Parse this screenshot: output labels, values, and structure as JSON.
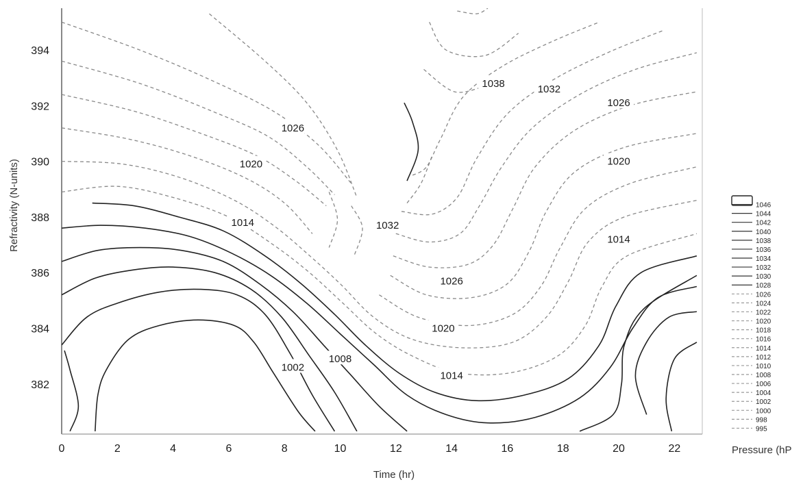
{
  "chart_data": {
    "type": "contour",
    "title": "",
    "xlabel": "Time (hr)",
    "ylabel": "Refractivity (N-units)",
    "xlim": [
      0,
      23
    ],
    "ylim": [
      380.2,
      395.5
    ],
    "x_ticks": [
      "0",
      "2",
      "4",
      "6",
      "8",
      "10",
      "12",
      "14",
      "16",
      "18",
      "20",
      "22"
    ],
    "y_ticks": [
      "382",
      "384",
      "386",
      "388",
      "390",
      "392",
      "394"
    ],
    "colorbar_title": "Pressure (hP",
    "colorbar_levels": [
      "1046",
      "1044",
      "1042",
      "1040",
      "1038",
      "1036",
      "1034",
      "1032",
      "1030",
      "1028",
      "1026",
      "1024",
      "1022",
      "1020",
      "1018",
      "1016",
      "1014",
      "1012",
      "1010",
      "1008",
      "1006",
      "1004",
      "1002",
      "1000",
      "998",
      "995"
    ],
    "contour_labels": [
      {
        "text": "1026",
        "x": 8.3,
        "y": 391.2
      },
      {
        "text": "1020",
        "x": 6.8,
        "y": 389.9
      },
      {
        "text": "1014",
        "x": 6.5,
        "y": 387.8
      },
      {
        "text": "1002",
        "x": 8.3,
        "y": 382.6
      },
      {
        "text": "1008",
        "x": 10.0,
        "y": 382.9
      },
      {
        "text": "1032",
        "x": 11.7,
        "y": 387.7
      },
      {
        "text": "1026",
        "x": 14.0,
        "y": 385.7
      },
      {
        "text": "1020",
        "x": 13.7,
        "y": 384.0
      },
      {
        "text": "1014",
        "x": 14.0,
        "y": 382.3
      },
      {
        "text": "1038",
        "x": 15.5,
        "y": 392.8
      },
      {
        "text": "1032",
        "x": 17.5,
        "y": 392.6
      },
      {
        "text": "1026",
        "x": 20.0,
        "y": 392.1
      },
      {
        "text": "1020",
        "x": 20.0,
        "y": 390.0
      },
      {
        "text": "1014",
        "x": 20.0,
        "y": 387.2
      }
    ],
    "contours": [
      {
        "level": 1000,
        "style": "solid",
        "points": [
          [
            0.3,
            380.3
          ],
          [
            0.6,
            381.2
          ],
          [
            0.3,
            382.5
          ],
          [
            0.1,
            383.2
          ]
        ]
      },
      {
        "level": 1002,
        "style": "solid",
        "points": [
          [
            1.2,
            380.3
          ],
          [
            1.3,
            381.6
          ],
          [
            1.6,
            382.5
          ],
          [
            2.4,
            383.6
          ],
          [
            3.5,
            384.1
          ],
          [
            4.9,
            384.3
          ],
          [
            6.2,
            384.1
          ],
          [
            6.9,
            383.5
          ],
          [
            7.6,
            382.4
          ],
          [
            8.5,
            381.0
          ],
          [
            9.1,
            380.3
          ]
        ]
      },
      {
        "level": 1004,
        "style": "solid",
        "points": [
          [
            0.0,
            383.4
          ],
          [
            0.9,
            384.4
          ],
          [
            2.0,
            384.9
          ],
          [
            3.5,
            385.3
          ],
          [
            5.0,
            385.4
          ],
          [
            6.3,
            385.2
          ],
          [
            7.3,
            384.5
          ],
          [
            8.2,
            383.1
          ],
          [
            9.0,
            381.6
          ],
          [
            9.8,
            380.3
          ]
        ]
      },
      {
        "level": 1006,
        "style": "solid",
        "points": [
          [
            0.0,
            385.2
          ],
          [
            1.2,
            385.8
          ],
          [
            2.6,
            386.1
          ],
          [
            4.0,
            386.2
          ],
          [
            5.5,
            386.0
          ],
          [
            6.8,
            385.4
          ],
          [
            7.9,
            384.4
          ],
          [
            8.9,
            383.0
          ],
          [
            9.8,
            381.7
          ],
          [
            10.6,
            380.3
          ]
        ]
      },
      {
        "level": 1008,
        "style": "solid",
        "points": [
          [
            0.0,
            386.4
          ],
          [
            1.3,
            386.8
          ],
          [
            2.8,
            386.9
          ],
          [
            4.3,
            386.8
          ],
          [
            5.8,
            386.4
          ],
          [
            7.1,
            385.6
          ],
          [
            8.3,
            384.6
          ],
          [
            9.4,
            383.4
          ],
          [
            10.4,
            382.3
          ],
          [
            11.4,
            381.2
          ],
          [
            12.4,
            380.3
          ]
        ]
      },
      {
        "level": 1010,
        "style": "solid",
        "points": [
          [
            0.0,
            387.6
          ],
          [
            1.4,
            387.7
          ],
          [
            3.0,
            387.6
          ],
          [
            4.6,
            387.3
          ],
          [
            6.1,
            386.7
          ],
          [
            7.5,
            385.9
          ],
          [
            8.8,
            384.9
          ],
          [
            10.0,
            383.8
          ],
          [
            11.2,
            382.7
          ],
          [
            12.4,
            381.6
          ],
          [
            13.8,
            380.9
          ],
          [
            15.3,
            380.6
          ],
          [
            17.0,
            380.8
          ],
          [
            18.6,
            381.5
          ],
          [
            19.7,
            382.6
          ],
          [
            20.5,
            384.0
          ],
          [
            21.4,
            385.1
          ],
          [
            22.8,
            385.5
          ]
        ]
      },
      {
        "level": 1012,
        "style": "solid",
        "points": [
          [
            1.1,
            388.5
          ],
          [
            2.6,
            388.4
          ],
          [
            4.2,
            388.0
          ],
          [
            5.8,
            387.5
          ],
          [
            7.3,
            386.6
          ],
          [
            8.6,
            385.6
          ],
          [
            9.8,
            384.5
          ],
          [
            10.9,
            383.4
          ],
          [
            12.1,
            382.4
          ],
          [
            13.4,
            381.7
          ],
          [
            14.9,
            381.4
          ],
          [
            16.6,
            381.6
          ],
          [
            18.2,
            382.2
          ],
          [
            19.3,
            383.4
          ],
          [
            19.9,
            384.8
          ],
          [
            20.8,
            386.0
          ],
          [
            22.8,
            386.6
          ]
        ]
      },
      {
        "level": 1014,
        "style": "light",
        "points": [
          [
            0.0,
            388.9
          ],
          [
            2.0,
            389.1
          ],
          [
            4.0,
            388.7
          ],
          [
            6.0,
            388.0
          ],
          [
            7.6,
            387.0
          ],
          [
            8.9,
            386.0
          ],
          [
            10.1,
            384.9
          ],
          [
            11.3,
            383.8
          ],
          [
            12.6,
            383.0
          ],
          [
            14.2,
            382.4
          ],
          [
            16.1,
            382.4
          ],
          [
            17.8,
            383.0
          ],
          [
            18.8,
            384.1
          ],
          [
            19.4,
            385.5
          ],
          [
            20.3,
            386.6
          ],
          [
            22.8,
            387.4
          ]
        ]
      },
      {
        "level": 1016,
        "style": "light",
        "points": [
          [
            0.0,
            390.0
          ],
          [
            2.2,
            389.9
          ],
          [
            4.3,
            389.4
          ],
          [
            6.2,
            388.6
          ],
          [
            7.6,
            387.7
          ],
          [
            8.8,
            386.7
          ],
          [
            10.0,
            385.6
          ],
          [
            11.2,
            384.4
          ],
          [
            12.6,
            383.6
          ],
          [
            14.4,
            383.3
          ],
          [
            16.2,
            383.5
          ],
          [
            17.4,
            384.4
          ],
          [
            18.2,
            385.7
          ],
          [
            18.9,
            387.1
          ],
          [
            20.2,
            388.0
          ],
          [
            22.8,
            388.6
          ]
        ]
      },
      {
        "level": 1018,
        "style": "light",
        "points": [
          [
            0.0,
            391.2
          ],
          [
            2.4,
            390.8
          ],
          [
            4.6,
            390.2
          ],
          [
            6.6,
            389.4
          ],
          [
            8.0,
            388.5
          ],
          [
            9.0,
            387.4
          ]
        ]
      },
      {
        "level": 1018,
        "style": "light",
        "points": [
          [
            11.4,
            385.2
          ],
          [
            12.8,
            384.4
          ],
          [
            14.6,
            384.1
          ],
          [
            16.2,
            384.5
          ],
          [
            17.2,
            385.5
          ],
          [
            17.9,
            386.9
          ],
          [
            18.8,
            388.3
          ],
          [
            20.4,
            389.2
          ],
          [
            22.8,
            389.8
          ]
        ]
      },
      {
        "level": 1020,
        "style": "light",
        "points": [
          [
            0.0,
            392.4
          ],
          [
            2.6,
            391.8
          ],
          [
            5.0,
            391.0
          ],
          [
            7.0,
            390.2
          ],
          [
            8.4,
            389.3
          ],
          [
            9.5,
            388.4
          ]
        ]
      },
      {
        "level": 1020,
        "style": "light",
        "points": [
          [
            11.8,
            385.9
          ],
          [
            13.1,
            385.2
          ],
          [
            14.7,
            385.1
          ],
          [
            16.0,
            385.6
          ],
          [
            16.8,
            386.8
          ],
          [
            17.4,
            388.2
          ],
          [
            18.4,
            389.6
          ],
          [
            20.2,
            390.5
          ],
          [
            22.8,
            391.0
          ]
        ]
      },
      {
        "level": 1022,
        "style": "light",
        "points": [
          [
            0.0,
            393.6
          ],
          [
            2.8,
            392.8
          ],
          [
            5.4,
            391.8
          ],
          [
            7.4,
            390.9
          ],
          [
            8.8,
            389.8
          ],
          [
            9.8,
            388.8
          ]
        ]
      },
      {
        "level": 1022,
        "style": "light",
        "points": [
          [
            11.9,
            386.6
          ],
          [
            13.2,
            386.2
          ],
          [
            14.6,
            386.3
          ],
          [
            15.5,
            387.0
          ],
          [
            16.2,
            388.3
          ],
          [
            17.0,
            389.8
          ],
          [
            18.4,
            391.1
          ],
          [
            20.4,
            392.0
          ],
          [
            22.8,
            392.5
          ]
        ]
      },
      {
        "level": 1024,
        "style": "light",
        "points": [
          [
            0.0,
            395.0
          ],
          [
            2.8,
            394.0
          ],
          [
            5.4,
            392.9
          ],
          [
            7.6,
            391.8
          ],
          [
            9.2,
            390.6
          ],
          [
            10.4,
            389.2
          ]
        ]
      },
      {
        "level": 1024,
        "style": "light",
        "points": [
          [
            12.0,
            387.4
          ],
          [
            13.2,
            387.1
          ],
          [
            14.3,
            387.4
          ],
          [
            15.0,
            388.4
          ],
          [
            15.8,
            389.8
          ],
          [
            16.9,
            391.2
          ],
          [
            18.6,
            392.4
          ],
          [
            20.6,
            393.3
          ],
          [
            22.8,
            393.9
          ]
        ]
      },
      {
        "level": 1026,
        "style": "light",
        "points": [
          [
            5.3,
            395.3
          ],
          [
            7.3,
            393.6
          ],
          [
            8.8,
            392.1
          ],
          [
            9.9,
            390.4
          ],
          [
            10.6,
            388.7
          ]
        ]
      },
      {
        "level": 1026,
        "style": "light",
        "points": [
          [
            12.2,
            388.2
          ],
          [
            13.3,
            388.1
          ],
          [
            14.2,
            388.7
          ],
          [
            14.9,
            390.1
          ],
          [
            16.0,
            391.7
          ],
          [
            17.6,
            392.9
          ],
          [
            19.6,
            393.9
          ],
          [
            21.6,
            394.7
          ]
        ]
      },
      {
        "level": 1028,
        "style": "light",
        "points": [
          [
            9.6,
            388.9
          ],
          [
            9.9,
            387.9
          ],
          [
            9.6,
            386.9
          ]
        ]
      },
      {
        "level": 1028,
        "style": "light",
        "points": [
          [
            10.4,
            388.4
          ],
          [
            10.8,
            387.6
          ],
          [
            10.5,
            386.6
          ]
        ]
      },
      {
        "level": 1030,
        "style": "light",
        "points": [
          [
            12.6,
            389.5
          ],
          [
            13.1,
            389.8
          ],
          [
            13.6,
            390.8
          ],
          [
            14.4,
            392.3
          ],
          [
            15.8,
            393.4
          ],
          [
            17.6,
            394.3
          ],
          [
            19.3,
            395.0
          ]
        ]
      },
      {
        "level": 1032,
        "style": "light",
        "points": [
          [
            12.4,
            388.5
          ],
          [
            12.9,
            389.2
          ],
          [
            13.3,
            390.2
          ]
        ]
      },
      {
        "level": 1034,
        "style": "solid",
        "points": [
          [
            12.3,
            392.1
          ],
          [
            12.6,
            391.4
          ],
          [
            12.8,
            390.4
          ],
          [
            12.4,
            389.3
          ]
        ]
      },
      {
        "level": 1036,
        "style": "light",
        "points": [
          [
            13.0,
            393.3
          ],
          [
            14.1,
            392.5
          ],
          [
            15.2,
            392.7
          ]
        ]
      },
      {
        "level": 1038,
        "style": "light",
        "points": [
          [
            13.2,
            395.0
          ],
          [
            13.8,
            394.0
          ],
          [
            15.2,
            393.8
          ],
          [
            16.4,
            394.6
          ]
        ]
      },
      {
        "level": 1040,
        "style": "light",
        "points": [
          [
            14.2,
            395.4
          ],
          [
            14.9,
            395.3
          ],
          [
            15.3,
            395.5
          ]
        ]
      },
      {
        "level": 1006,
        "style": "solid",
        "points": [
          [
            21.0,
            380.9
          ],
          [
            20.6,
            382.3
          ],
          [
            21.0,
            383.5
          ],
          [
            21.8,
            384.4
          ],
          [
            22.8,
            384.6
          ]
        ]
      },
      {
        "level": 1004,
        "style": "solid",
        "points": [
          [
            21.9,
            380.3
          ],
          [
            21.7,
            381.5
          ],
          [
            22.0,
            382.9
          ],
          [
            22.8,
            383.5
          ]
        ]
      },
      {
        "level": 1008,
        "style": "solid",
        "points": [
          [
            18.6,
            380.3
          ],
          [
            19.8,
            380.9
          ],
          [
            20.1,
            382.0
          ],
          [
            20.2,
            383.4
          ],
          [
            20.9,
            384.7
          ],
          [
            22.8,
            385.9
          ]
        ]
      }
    ]
  }
}
